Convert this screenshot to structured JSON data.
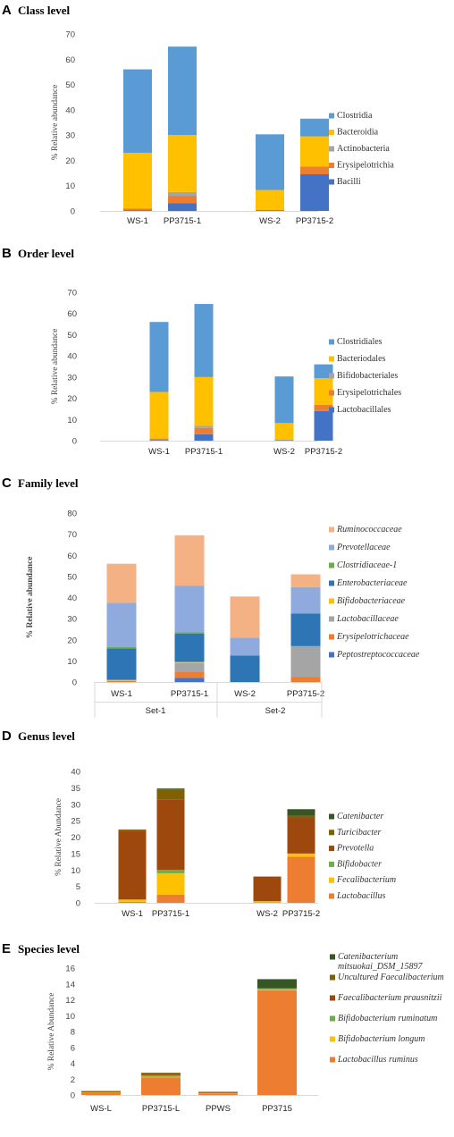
{
  "colors": {
    "bacilli": "#4472C4",
    "erysipelotrichia": "#ED7D31",
    "actinobacteria": "#A5A5A5",
    "bacteroidia": "#FFC000",
    "clostridia": "#5B9BD5",
    "ruminococcaceae": "#F4B183",
    "prevotellaceae": "#8FAADC",
    "clostridiaceae": "#70AD47",
    "enterobacteriaceae": "#2E75B6",
    "bifidobacteriaceae": "#FFC000",
    "lactobacillaceae": "#A5A5A5",
    "erysipelotrichaceae": "#ED7D31",
    "peptostreptococcaceae": "#4472C4",
    "catenibacter": "#375623",
    "turicibacter": "#806000",
    "prevotella": "#9E480E",
    "bifidobacter": "#70AD47",
    "fecalibacterium": "#FFC000",
    "lactobacillus": "#ED7D31"
  },
  "chart_data": [
    {
      "letter": "A",
      "title": "Class level",
      "type": "bar",
      "stacked": true,
      "ylabel": "% Relative abundance",
      "ylim": [
        0,
        70
      ],
      "ticks": [
        0,
        10,
        20,
        30,
        40,
        50,
        60,
        70
      ],
      "categories": [
        "WS-1",
        "PP3715-1",
        "",
        "WS-2",
        "PP3715-2"
      ],
      "series": [
        {
          "name": "Bacilli",
          "color": "bacilli",
          "values": [
            0.3,
            3,
            0,
            0.3,
            14.5
          ]
        },
        {
          "name": "Erysipelotrichia",
          "color": "erysipelotrichia",
          "values": [
            0.7,
            3,
            0,
            0,
            3
          ]
        },
        {
          "name": "Actinobacteria",
          "color": "actinobacteria",
          "values": [
            0,
            1.5,
            0,
            0,
            0
          ]
        },
        {
          "name": "Bacteroidia",
          "color": "bacteroidia",
          "values": [
            22,
            22.5,
            0,
            8,
            12
          ]
        },
        {
          "name": "Clostridia",
          "color": "clostridia",
          "values": [
            33,
            35,
            0,
            22,
            7
          ]
        }
      ],
      "legend": [
        "Clostridia",
        "Bacteroidia",
        "Actinobacteria",
        "Erysipelotrichia",
        "Bacilli"
      ],
      "legend_italic": false
    },
    {
      "letter": "B",
      "title": "Order level",
      "type": "bar",
      "stacked": true,
      "ylabel": "% Relative abundance",
      "ylim": [
        0,
        70
      ],
      "ticks": [
        0,
        10,
        20,
        30,
        40,
        50,
        60,
        70
      ],
      "categories": [
        "WS-1",
        "PP3715-1",
        "",
        "WS-2",
        "PP3715-2"
      ],
      "series": [
        {
          "name": "Lactobacillales",
          "color": "bacilli",
          "values": [
            0.3,
            3,
            0,
            0.3,
            14
          ]
        },
        {
          "name": "Erysipelotrichales",
          "color": "erysipelotrichia",
          "values": [
            0.7,
            3,
            0,
            0,
            3
          ]
        },
        {
          "name": "Bifidobacteriales",
          "color": "actinobacteria",
          "values": [
            0,
            1,
            0,
            0,
            0
          ]
        },
        {
          "name": "Bacteriodales",
          "color": "bacteroidia",
          "values": [
            22,
            23,
            0,
            8,
            12.5
          ]
        },
        {
          "name": "Clostridiales",
          "color": "clostridia",
          "values": [
            33,
            34.5,
            0,
            22,
            6.5
          ]
        }
      ],
      "legend": [
        "Clostridiales",
        "Bacteriodales",
        "Bifidobacteriales",
        "Erysipelotrichales",
        "Lactobacillales"
      ],
      "legend_italic": false
    },
    {
      "letter": "C",
      "title": "Family  level",
      "type": "bar",
      "stacked": true,
      "ylabel": "% Relative abundance",
      "ylim": [
        0,
        80
      ],
      "ticks": [
        0,
        10,
        20,
        30,
        40,
        50,
        60,
        70,
        80
      ],
      "categories": [
        "WS-1",
        "PP3715-1",
        "WS-2",
        "PP3715-2"
      ],
      "groups": [
        "Set-1",
        "Set-2"
      ],
      "series": [
        {
          "name": "Peptostreptococcaceae",
          "color": "peptostreptococcaceae",
          "values": [
            0,
            2,
            0,
            0
          ]
        },
        {
          "name": "Erysipelotrichaceae",
          "color": "erysipelotrichaceae",
          "values": [
            0.5,
            3,
            0,
            2.5
          ]
        },
        {
          "name": "Lactobacillaceae",
          "color": "lactobacillaceae",
          "values": [
            0,
            4,
            0,
            14.5
          ]
        },
        {
          "name": "Bifidobacteriaceae",
          "color": "bifidobacteriaceae",
          "values": [
            0.5,
            0.5,
            0,
            0
          ]
        },
        {
          "name": "Enterobacteriaceae",
          "color": "enterobacteriaceae",
          "values": [
            15,
            13.5,
            12.5,
            15.5
          ]
        },
        {
          "name": "Clostridiaceae-1",
          "color": "clostridiaceae",
          "values": [
            0.5,
            0.5,
            0,
            0
          ]
        },
        {
          "name": "Prevotellaceae",
          "color": "prevotellaceae",
          "values": [
            21,
            22,
            8.5,
            12.5
          ]
        },
        {
          "name": "Ruminococcaceae",
          "color": "ruminococcaceae",
          "values": [
            18.5,
            24,
            19.5,
            6
          ]
        }
      ],
      "legend": [
        "Ruminococcaceae",
        "Prevotellaceae",
        "Clostridiaceae-1",
        "Enterobacteriaceae",
        "Bifidobacteriaceae",
        "Lactobacillaceae",
        "Erysipelotrichaceae",
        "Peptostreptococcaceae"
      ],
      "legend_italic": true
    },
    {
      "letter": "D",
      "title": "Genus level",
      "type": "bar",
      "stacked": true,
      "ylabel": "% Relative Abundance",
      "ylim": [
        0,
        40
      ],
      "ticks": [
        0,
        5,
        10,
        15,
        20,
        25,
        30,
        35,
        40
      ],
      "categories": [
        "WS-1",
        "PP3715-1",
        "",
        "WS-2",
        "PP3715-2"
      ],
      "series": [
        {
          "name": "Lactobacillus",
          "color": "lactobacillus",
          "values": [
            0.3,
            2.5,
            0,
            0.2,
            14
          ]
        },
        {
          "name": "Fecalibacterium",
          "color": "fecalibacterium",
          "values": [
            0.7,
            6.5,
            0,
            0.3,
            1
          ]
        },
        {
          "name": "Bifidobacter",
          "color": "bifidobacter",
          "values": [
            0,
            1,
            0,
            0,
            0
          ]
        },
        {
          "name": "Prevotella",
          "color": "prevotella",
          "values": [
            21,
            21.5,
            0,
            7.5,
            11
          ]
        },
        {
          "name": "Turicibacter",
          "color": "turicibacter",
          "values": [
            0.3,
            3,
            0,
            0,
            0.5
          ]
        },
        {
          "name": "Catenibacter",
          "color": "catenibacter",
          "values": [
            0,
            0.3,
            0,
            0,
            2
          ]
        }
      ],
      "legend": [
        "Catenibacter",
        "Turicibacter",
        "Prevotella",
        "Bifidobacter",
        "Fecalibacterium",
        "Lactobacillus"
      ],
      "legend_italic": true
    },
    {
      "letter": "E",
      "title": "Species level",
      "type": "bar",
      "stacked": true,
      "ylabel": "% Relative Abundance",
      "ylim": [
        0,
        16
      ],
      "ticks": [
        0,
        2,
        4,
        6,
        8,
        10,
        12,
        14,
        16
      ],
      "categories": [
        "WS-L",
        "PP3715-L",
        "PPWS",
        "PP3715"
      ],
      "series": [
        {
          "name": "Lactobacillus ruminus",
          "color": "lactobacillus",
          "values": [
            0.3,
            2.2,
            0.2,
            13.2
          ]
        },
        {
          "name": "Bifidobacterium longum",
          "color": "fecalibacterium",
          "values": [
            0.05,
            0.1,
            0.05,
            0.1
          ]
        },
        {
          "name": "Bifidobacterium ruminatum",
          "color": "bifidobacter",
          "values": [
            0,
            0.2,
            0,
            0.1
          ]
        },
        {
          "name": "Faecalibacterium prausnitzii",
          "color": "prevotella",
          "values": [
            0.1,
            0.2,
            0.1,
            0
          ]
        },
        {
          "name": "Uncultured Faecalibacterium",
          "color": "turicibacter",
          "values": [
            0.05,
            0.1,
            0.05,
            0.1
          ]
        },
        {
          "name": "Catenibacterium mitsuokai_DSM_15897",
          "color": "catenibacter",
          "values": [
            0,
            0,
            0,
            1.1
          ]
        }
      ],
      "legend": [
        "Catenibacterium mitsuokai_DSM_15897",
        "Uncultured Faecalibacterium",
        "Faecalibacterium prausnitzii",
        "Bifidobacterium ruminatum",
        "Bifidobacterium longum",
        "Lactobacillus ruminus"
      ],
      "legend_italic": true
    }
  ]
}
